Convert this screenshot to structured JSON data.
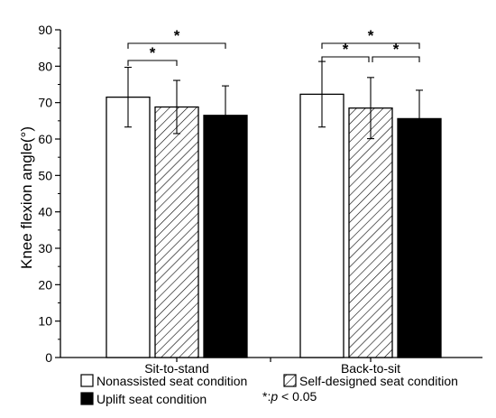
{
  "chart_data": {
    "type": "bar",
    "ylabel": "Knee flexion angle(°)",
    "xlabel": "",
    "ylim": [
      0,
      90
    ],
    "yticks": [
      0,
      10,
      20,
      30,
      40,
      50,
      60,
      70,
      80,
      90
    ],
    "categories": [
      "Sit-to-stand",
      "Back-to-sit"
    ],
    "series": [
      {
        "name": "Nonassisted seat condition",
        "values": [
          71.5,
          72.3
        ],
        "errors": [
          8.2,
          9.0
        ],
        "fill": "white"
      },
      {
        "name": "Self-designed seat condition",
        "values": [
          68.8,
          68.5
        ],
        "errors": [
          7.3,
          8.4
        ],
        "fill": "hatched"
      },
      {
        "name": "Uplift seat condition",
        "values": [
          66.5,
          65.6
        ],
        "errors": [
          8.1,
          7.8
        ],
        "fill": "black"
      }
    ],
    "significance": [
      {
        "category": 0,
        "from_series": 0,
        "to_series": 1,
        "label": "*",
        "y": 84
      },
      {
        "category": 0,
        "from_series": 0,
        "to_series": 2,
        "label": "*",
        "y": 86.5
      },
      {
        "category": 1,
        "from_series": 0,
        "to_series": 1,
        "label": "*",
        "y": 85.5
      },
      {
        "category": 1,
        "from_series": 1,
        "to_series": 2,
        "label": "*",
        "y": 85.5
      },
      {
        "category": 1,
        "from_series": 0,
        "to_series": 2,
        "label": "*",
        "y": 85.5
      }
    ],
    "footnote": "*:p < 0.05",
    "grid": false,
    "legend_position": "bottom"
  }
}
